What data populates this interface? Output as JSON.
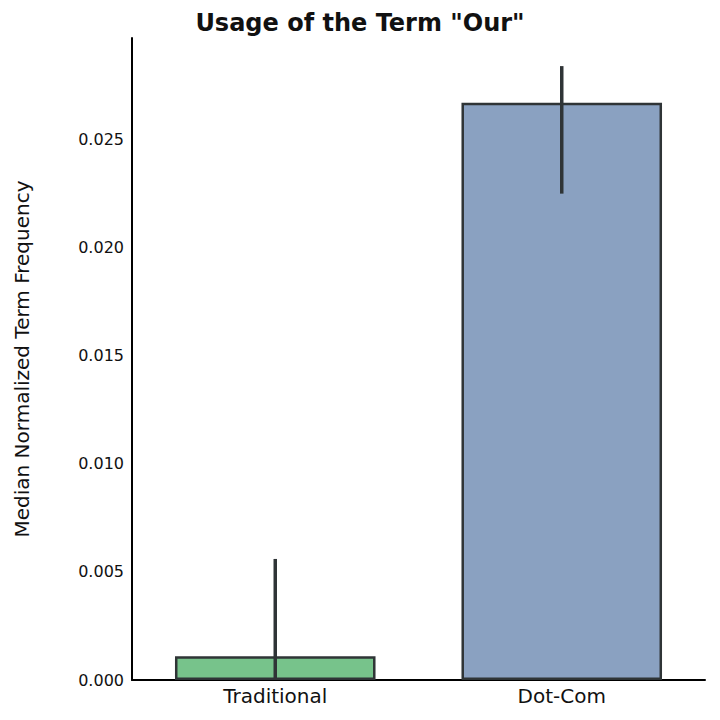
{
  "chart_data": {
    "type": "bar",
    "title": "Usage of the Term \"Our\"",
    "y_label": "Median Normalized Term Frequency",
    "categories": [
      "Traditional",
      "Dot-Com"
    ],
    "values": [
      0.0011,
      0.0267
    ],
    "error_low": [
      0.0,
      0.0225
    ],
    "error_high": [
      0.0056,
      0.0284
    ],
    "colors": [
      "#77c38b",
      "#8aa1c1"
    ],
    "ylim": [
      0,
      0.0297
    ],
    "yticks": [
      {
        "value": 0,
        "label": "0.000"
      },
      {
        "value": 0.005,
        "label": "0.005"
      },
      {
        "value": 0.01,
        "label": "0.010"
      },
      {
        "value": 0.015,
        "label": "0.015"
      },
      {
        "value": 0.02,
        "label": "0.020"
      },
      {
        "value": 0.025,
        "label": "0.025"
      }
    ],
    "grid": false
  }
}
